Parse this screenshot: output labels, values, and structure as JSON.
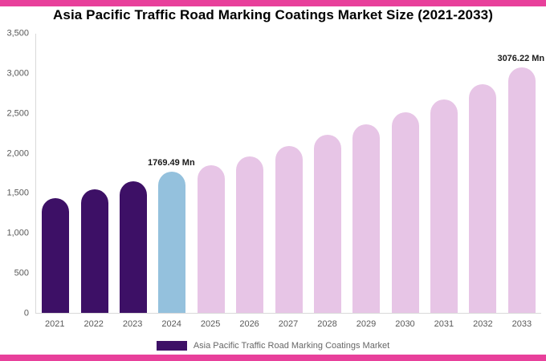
{
  "theme": {
    "accent_band": "#e8409b",
    "past_color": "#3d1066",
    "current_color": "#94c1dd",
    "forecast_color": "#e7c5e6",
    "axis_text_color": "#595959"
  },
  "legend": {
    "label": "Asia Pacific Traffic Road Marking Coatings Market",
    "swatch_color": "#3d1066"
  },
  "chart_data": {
    "type": "bar",
    "title": "Asia Pacific Traffic Road Marking Coatings Market Size (2021-2033)",
    "categories": [
      "2021",
      "2022",
      "2023",
      "2024",
      "2025",
      "2026",
      "2027",
      "2028",
      "2029",
      "2030",
      "2031",
      "2032",
      "2033"
    ],
    "values": [
      1440,
      1545,
      1650,
      1769.49,
      1850,
      1965,
      2090,
      2230,
      2365,
      2515,
      2680,
      2865,
      3076.22
    ],
    "bar_colors": [
      "#3d1066",
      "#3d1066",
      "#3d1066",
      "#94c1dd",
      "#e7c5e6",
      "#e7c5e6",
      "#e7c5e6",
      "#e7c5e6",
      "#e7c5e6",
      "#e7c5e6",
      "#e7c5e6",
      "#e7c5e6",
      "#e7c5e6"
    ],
    "unit": "Mn",
    "xlabel": "",
    "ylabel": "",
    "ylim": [
      0,
      3500
    ],
    "yticks": [
      "0",
      "500",
      "1,000",
      "1,500",
      "2,000",
      "2,500",
      "3,000",
      "3,500"
    ],
    "grid": false,
    "legend_position": "bottom",
    "data_labels": [
      {
        "index": 3,
        "text": "1769.49 Mn"
      },
      {
        "index": 12,
        "text": "3076.22 Mn"
      }
    ]
  }
}
